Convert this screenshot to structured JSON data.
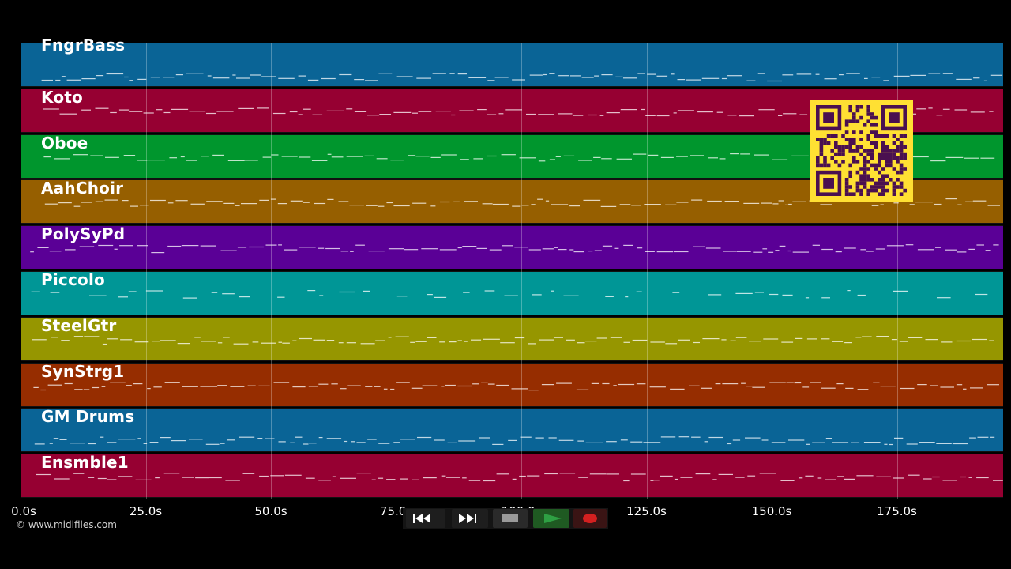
{
  "tracks": [
    {
      "name": "FngrBass",
      "color": "#0a6496"
    },
    {
      "name": "Koto",
      "color": "#960032"
    },
    {
      "name": "Oboe",
      "color": "#00962d"
    },
    {
      "name": "AahChoir",
      "color": "#965f00"
    },
    {
      "name": "PolySyPd",
      "color": "#5a0096"
    },
    {
      "name": "Piccolo",
      "color": "#009696"
    },
    {
      "name": "SteelGtr",
      "color": "#969600"
    },
    {
      "name": "SynStrg1",
      "color": "#962d00"
    },
    {
      "name": "GM Drums",
      "color": "#0a6496"
    },
    {
      "name": "Ensmble1",
      "color": "#960032"
    }
  ],
  "axis_ticks": [
    "0.0s",
    "25.0s",
    "50.0s",
    "75.0s",
    "100.0s",
    "125.0s",
    "150.0s",
    "175.0s"
  ],
  "copyright": "© www.midifiles.com",
  "transport": {
    "rewind_icon": "rewind-icon",
    "fast_forward_icon": "fast-forward-icon",
    "stop_icon": "stop-icon",
    "play_icon": "play-icon",
    "record_icon": "record-icon",
    "play_color": "#2ea043",
    "record_color": "#d42020"
  },
  "qr_colors": {
    "background": "#ffe033",
    "modules": "#4a1050"
  }
}
